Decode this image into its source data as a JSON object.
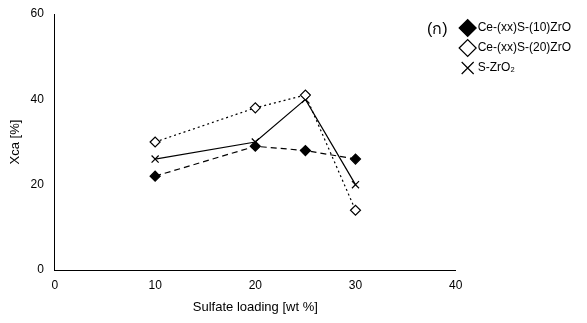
{
  "chart_data": {
    "type": "line",
    "x_label": "Sulfate loading [wt %]",
    "y_label": "Xca [%]",
    "annotation": "(ก)",
    "x": [
      10,
      20,
      25,
      30
    ],
    "series": [
      {
        "name": "Ce-(xx)S-(10)ZrO",
        "color": "#000000",
        "marker": "diamond",
        "line_style": "dashed",
        "values": [
          22,
          29,
          28,
          26
        ]
      },
      {
        "name": "Ce-(xx)S-(20)ZrO",
        "color": "#000000",
        "marker": "open_diamond",
        "line_style": "dotted",
        "values": [
          30,
          38,
          41,
          14
        ]
      },
      {
        "name": "S-ZrO₂",
        "color": "#000000",
        "marker": "x",
        "line_style": "solid",
        "values": [
          26,
          30,
          40,
          20
        ]
      }
    ],
    "xlim": [
      0,
      40
    ],
    "xticks": [
      0,
      10,
      20,
      30,
      40
    ],
    "ylim": [
      0,
      60
    ],
    "yticks": [
      0,
      20,
      40,
      60
    ],
    "grid": false,
    "legend": "right"
  }
}
